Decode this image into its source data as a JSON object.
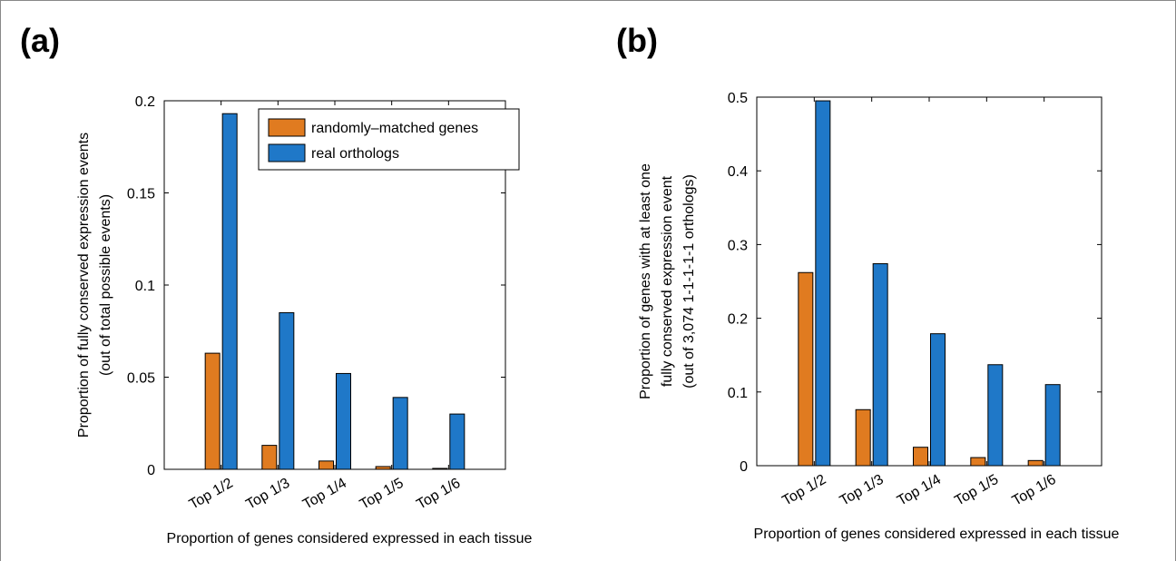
{
  "chart_data": [
    {
      "type": "bar",
      "panel_label": "(a)",
      "categories": [
        "Top 1/2",
        "Top 1/3",
        "Top 1/4",
        "Top 1/5",
        "Top 1/6"
      ],
      "series": [
        {
          "name": "randomly–matched genes",
          "color": "#e07b20",
          "values": [
            0.063,
            0.013,
            0.0045,
            0.0015,
            0.0005
          ]
        },
        {
          "name": "real orthologs",
          "color": "#1f78c8",
          "values": [
            0.193,
            0.085,
            0.052,
            0.039,
            0.03
          ]
        }
      ],
      "ylim": [
        0,
        0.2
      ],
      "yticks": [
        0,
        0.05,
        0.1,
        0.15,
        0.2
      ],
      "ytick_labels": [
        "0",
        "0.05",
        "0.1",
        "0.15",
        "0.2"
      ],
      "xlabel": "Proportion of genes considered expressed in each tissue",
      "ylabel_lines": [
        "Proportion of fully conserved expression events",
        "(out of total possible events)"
      ],
      "legend": "top-right",
      "grid": false
    },
    {
      "type": "bar",
      "panel_label": "(b)",
      "categories": [
        "Top 1/2",
        "Top 1/3",
        "Top 1/4",
        "Top 1/5",
        "Top 1/6"
      ],
      "series": [
        {
          "name": "randomly–matched genes",
          "color": "#e07b20",
          "values": [
            0.262,
            0.076,
            0.025,
            0.011,
            0.007
          ]
        },
        {
          "name": "real orthologs",
          "color": "#1f78c8",
          "values": [
            0.495,
            0.274,
            0.179,
            0.137,
            0.11
          ]
        }
      ],
      "ylim": [
        0,
        0.5
      ],
      "yticks": [
        0,
        0.1,
        0.2,
        0.3,
        0.4,
        0.5
      ],
      "ytick_labels": [
        "0",
        "0.1",
        "0.2",
        "0.3",
        "0.4",
        "0.5"
      ],
      "xlabel": "Proportion of genes considered expressed in each tissue",
      "ylabel_lines": [
        "Proportion of genes with at least one",
        "fully conserved expression event",
        "(out of 3,074 1-1-1-1-1 orthologs)"
      ],
      "legend": "none",
      "grid": false
    }
  ]
}
